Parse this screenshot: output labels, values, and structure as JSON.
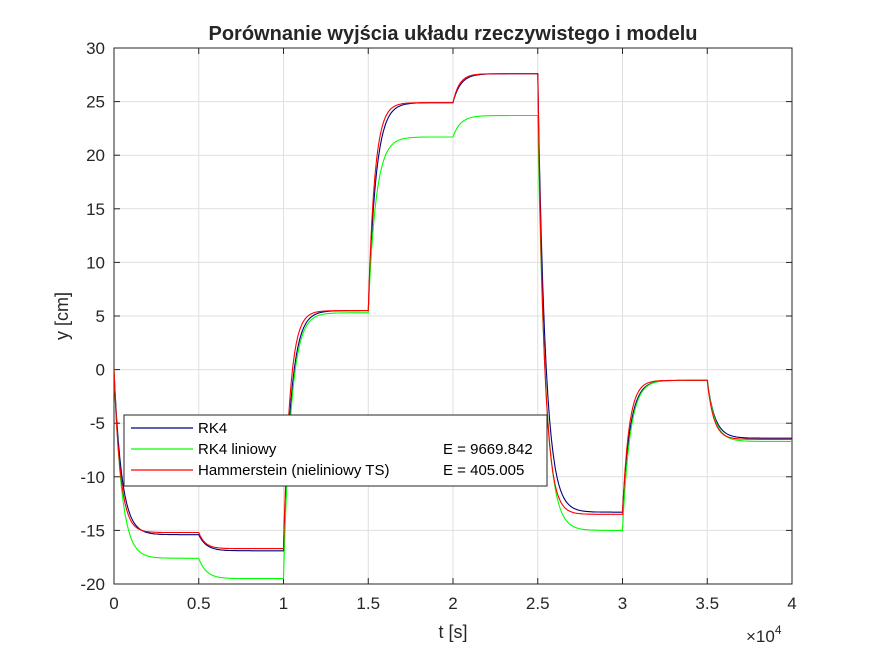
{
  "chart_data": {
    "type": "line",
    "title": "Porównanie wyjścia układu rzeczywistego i modelu",
    "xlabel": "t [s]",
    "ylabel": "y [cm]",
    "x_exponent_label": "×10",
    "x_exponent_power": "4",
    "xlim": [
      0,
      40000
    ],
    "ylim": [
      -20,
      30
    ],
    "x_ticks": [
      0,
      5000,
      10000,
      15000,
      20000,
      25000,
      30000,
      35000,
      40000
    ],
    "x_tick_labels": [
      "0",
      "0.5",
      "1",
      "1.5",
      "2",
      "2.5",
      "3",
      "3.5",
      "4"
    ],
    "y_ticks": [
      -20,
      -15,
      -10,
      -5,
      0,
      5,
      10,
      15,
      20,
      25,
      30
    ],
    "y_tick_labels": [
      "-20",
      "-15",
      "-10",
      "-5",
      "0",
      "5",
      "10",
      "15",
      "20",
      "25",
      "30"
    ],
    "grid": true,
    "legend_position": "lower-left",
    "legend": [
      {
        "label": "RK4",
        "value": ""
      },
      {
        "label": "RK4 liniowy",
        "value": "E = 9669.842"
      },
      {
        "label": "Hammerstein (nieliniowy TS)",
        "value": "E = 405.005"
      }
    ],
    "series": [
      {
        "name": "RK4",
        "color": "#00007f",
        "tau": 450,
        "start": 0,
        "steps": [
          [
            0,
            -15.4
          ],
          [
            5000,
            -16.9
          ],
          [
            10000,
            5.5
          ],
          [
            15000,
            24.9
          ],
          [
            20000,
            27.6
          ],
          [
            25000,
            -13.3
          ],
          [
            30000,
            -1.0
          ],
          [
            35000,
            -6.4
          ]
        ]
      },
      {
        "name": "RK4 liniowy",
        "color": "#00ff00",
        "tau": 450,
        "start": 0,
        "steps": [
          [
            0,
            -17.6
          ],
          [
            5000,
            -19.5
          ],
          [
            10000,
            5.3
          ],
          [
            15000,
            21.7
          ],
          [
            20000,
            23.7
          ],
          [
            25000,
            -15.0
          ],
          [
            30000,
            -1.0
          ],
          [
            35000,
            -6.7
          ]
        ]
      },
      {
        "name": "Hammerstein (nieliniowy TS)",
        "color": "#ff0000",
        "tau": 380,
        "start": 0,
        "steps": [
          [
            0,
            -15.2
          ],
          [
            5000,
            -16.7
          ],
          [
            10000,
            5.5
          ],
          [
            15000,
            24.9
          ],
          [
            20000,
            27.6
          ],
          [
            25000,
            -13.5
          ],
          [
            30000,
            -1.0
          ],
          [
            35000,
            -6.5
          ]
        ]
      }
    ]
  }
}
